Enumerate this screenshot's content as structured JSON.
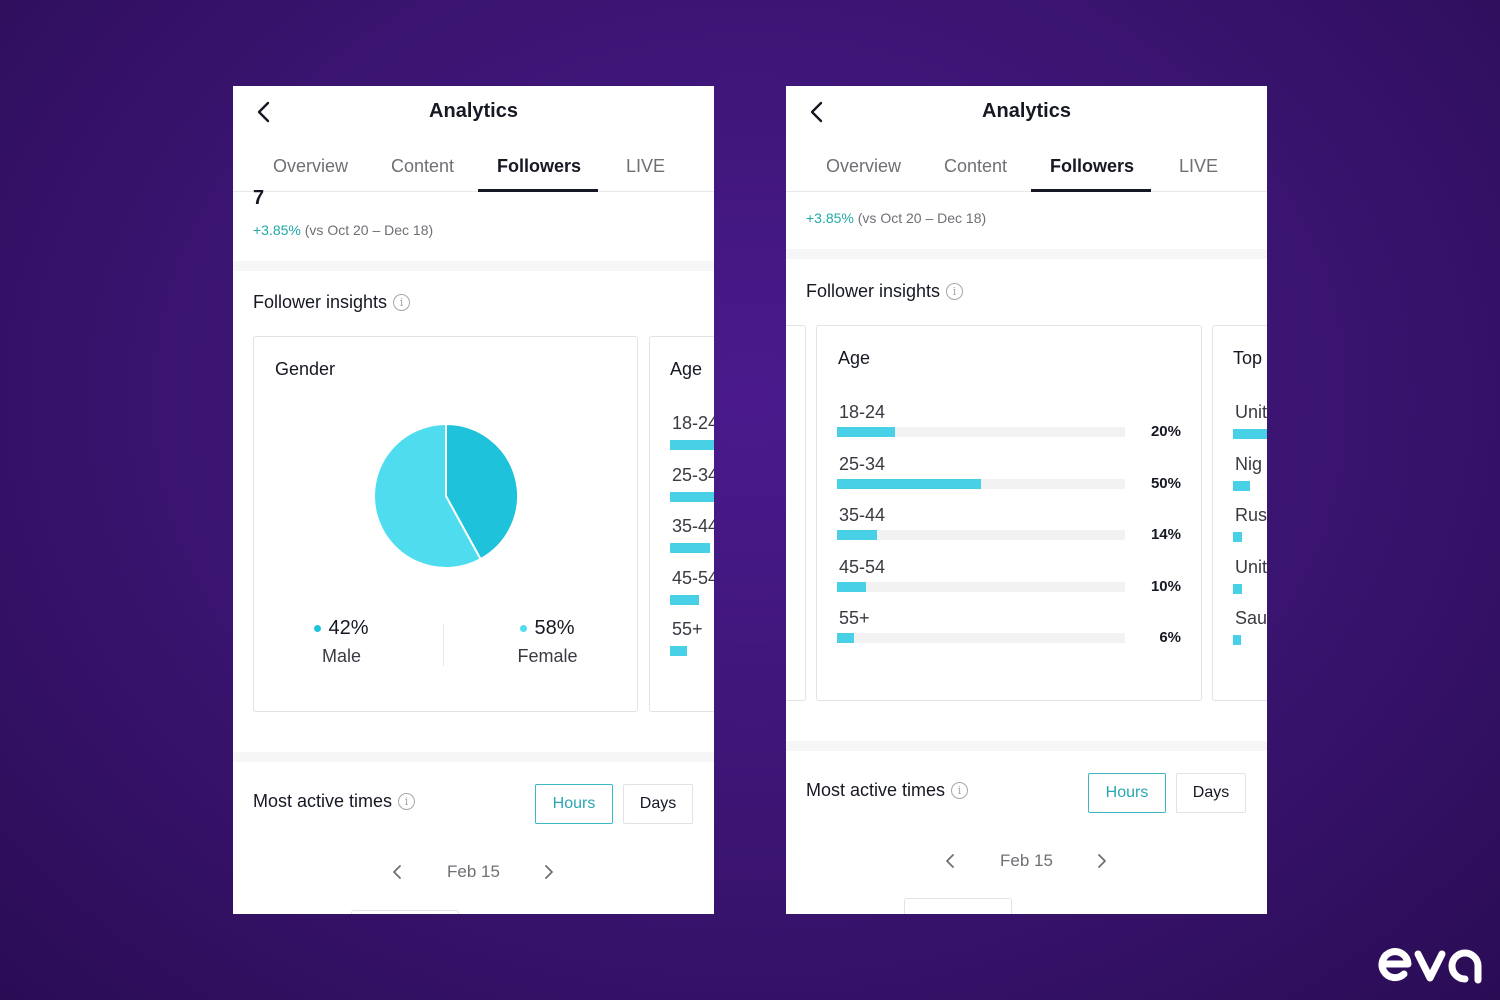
{
  "left": {
    "title": "Analytics",
    "tabs": [
      "Overview",
      "Content",
      "Followers",
      "LIVE"
    ],
    "followers_total": "7",
    "change_pct": "+3.85%",
    "change_period": "(vs Oct 20 – Dec 18)",
    "insights_title": "Follower insights",
    "gender": {
      "title": "Gender",
      "male": {
        "value": "42%",
        "label": "Male",
        "fraction": 0.42,
        "color": "#1fc2db"
      },
      "female": {
        "value": "58%",
        "label": "Female",
        "fraction": 0.58,
        "color": "#4fdcee"
      }
    },
    "age_peek": {
      "title": "Age",
      "rows": [
        {
          "label": "18-24",
          "value": 0.2
        },
        {
          "label": "25-34",
          "value": 0.5
        },
        {
          "label": "35-44",
          "value": 0.14
        },
        {
          "label": "45-54",
          "value": 0.1
        },
        {
          "label": "55+",
          "value": 0.06
        }
      ]
    },
    "active_times_title": "Most active times",
    "hours_label": "Hours",
    "days_label": "Days",
    "date_label": "Feb 15"
  },
  "right": {
    "title": "Analytics",
    "tabs": [
      "Overview",
      "Content",
      "Followers",
      "LIVE"
    ],
    "change_pct": "+3.85%",
    "change_period": "(vs Oct 20 – Dec 18)",
    "insights_title": "Follower insights",
    "age": {
      "title": "Age",
      "rows": [
        {
          "label": "18-24",
          "pct": "20%",
          "value": 0.2
        },
        {
          "label": "25-34",
          "pct": "50%",
          "value": 0.5
        },
        {
          "label": "35-44",
          "pct": "14%",
          "value": 0.14
        },
        {
          "label": "45-54",
          "pct": "10%",
          "value": 0.1
        },
        {
          "label": "55+",
          "pct": "6%",
          "value": 0.06
        }
      ]
    },
    "top_peek": {
      "title": "Top",
      "rows": [
        {
          "label": "Unit",
          "value": 0.9
        },
        {
          "label": "Nig",
          "value": 0.4
        },
        {
          "label": "Rus",
          "value": 0.2
        },
        {
          "label": "Unit",
          "value": 0.2
        },
        {
          "label": "Sau",
          "value": 0.15
        }
      ]
    },
    "active_times_title": "Most active times",
    "hours_label": "Hours",
    "days_label": "Days",
    "date_label": "Feb 15"
  },
  "colors": {
    "accent": "#48d1e6",
    "positive": "#20a9a9"
  }
}
